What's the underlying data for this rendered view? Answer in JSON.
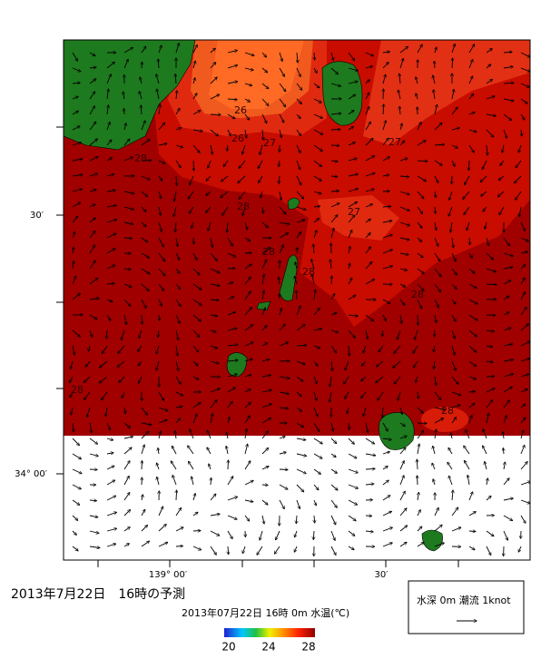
{
  "map": {
    "lat_labels": [
      "30′",
      "34° 00′"
    ],
    "lon_labels": [
      "139° 00′",
      "30′"
    ],
    "contour_labels": [
      "26",
      "26",
      "27",
      "27",
      "28",
      "28",
      "27",
      "28",
      "28",
      "28",
      "28",
      "28"
    ]
  },
  "footer": {
    "title": "2013年7月22日　16時の予測"
  },
  "colorbar": {
    "title": "2013年07月22日 16時 0m 水温(℃)",
    "ticks": [
      "20",
      "24",
      "28"
    ]
  },
  "legend": {
    "text": "水深 0m 潮流 1knot"
  }
}
